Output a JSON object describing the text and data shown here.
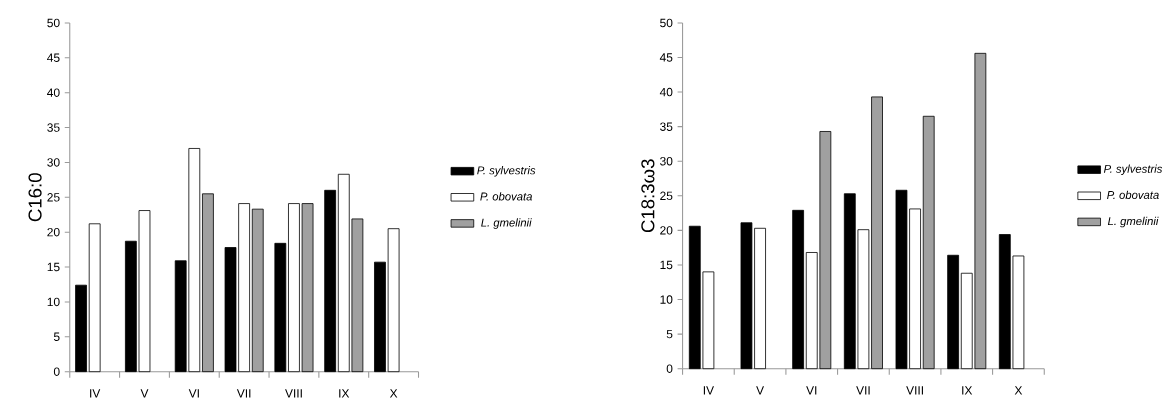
{
  "chart_data": [
    {
      "type": "bar",
      "ylabel": "C16:0",
      "categories": [
        "IV",
        "V",
        "VI",
        "VII",
        "VIII",
        "IX",
        "X"
      ],
      "ylim": [
        0,
        50
      ],
      "yticks": [
        0,
        5,
        10,
        15,
        20,
        25,
        30,
        35,
        40,
        45,
        50
      ],
      "legend": "right",
      "series": [
        {
          "name": "P. sylvestris",
          "color": "#000000",
          "values": [
            12.4,
            18.7,
            15.9,
            17.8,
            18.4,
            26.0,
            15.7
          ]
        },
        {
          "name": "P. obovata",
          "color": "#ffffff",
          "values": [
            21.2,
            23.1,
            32.0,
            24.1,
            24.1,
            28.3,
            20.5
          ]
        },
        {
          "name": "L. gmelinii",
          "color": "#a0a0a0",
          "values": [
            null,
            null,
            25.5,
            23.3,
            24.1,
            21.9,
            null
          ]
        }
      ]
    },
    {
      "type": "bar",
      "ylabel": "C18:3ω3",
      "categories": [
        "IV",
        "V",
        "VI",
        "VII",
        "VIII",
        "IX",
        "X"
      ],
      "ylim": [
        0,
        50
      ],
      "yticks": [
        0,
        5,
        10,
        15,
        20,
        25,
        30,
        35,
        40,
        45,
        50
      ],
      "legend": "right",
      "series": [
        {
          "name": "P. sylvestris",
          "color": "#000000",
          "values": [
            20.6,
            21.1,
            22.9,
            25.3,
            25.8,
            16.4,
            19.4
          ]
        },
        {
          "name": "P. obovata",
          "color": "#ffffff",
          "values": [
            14.0,
            20.3,
            16.8,
            20.1,
            23.1,
            13.8,
            16.3
          ]
        },
        {
          "name": "L. gmelinii",
          "color": "#a0a0a0",
          "values": [
            null,
            null,
            34.3,
            39.3,
            36.5,
            45.6,
            null
          ]
        }
      ]
    }
  ]
}
